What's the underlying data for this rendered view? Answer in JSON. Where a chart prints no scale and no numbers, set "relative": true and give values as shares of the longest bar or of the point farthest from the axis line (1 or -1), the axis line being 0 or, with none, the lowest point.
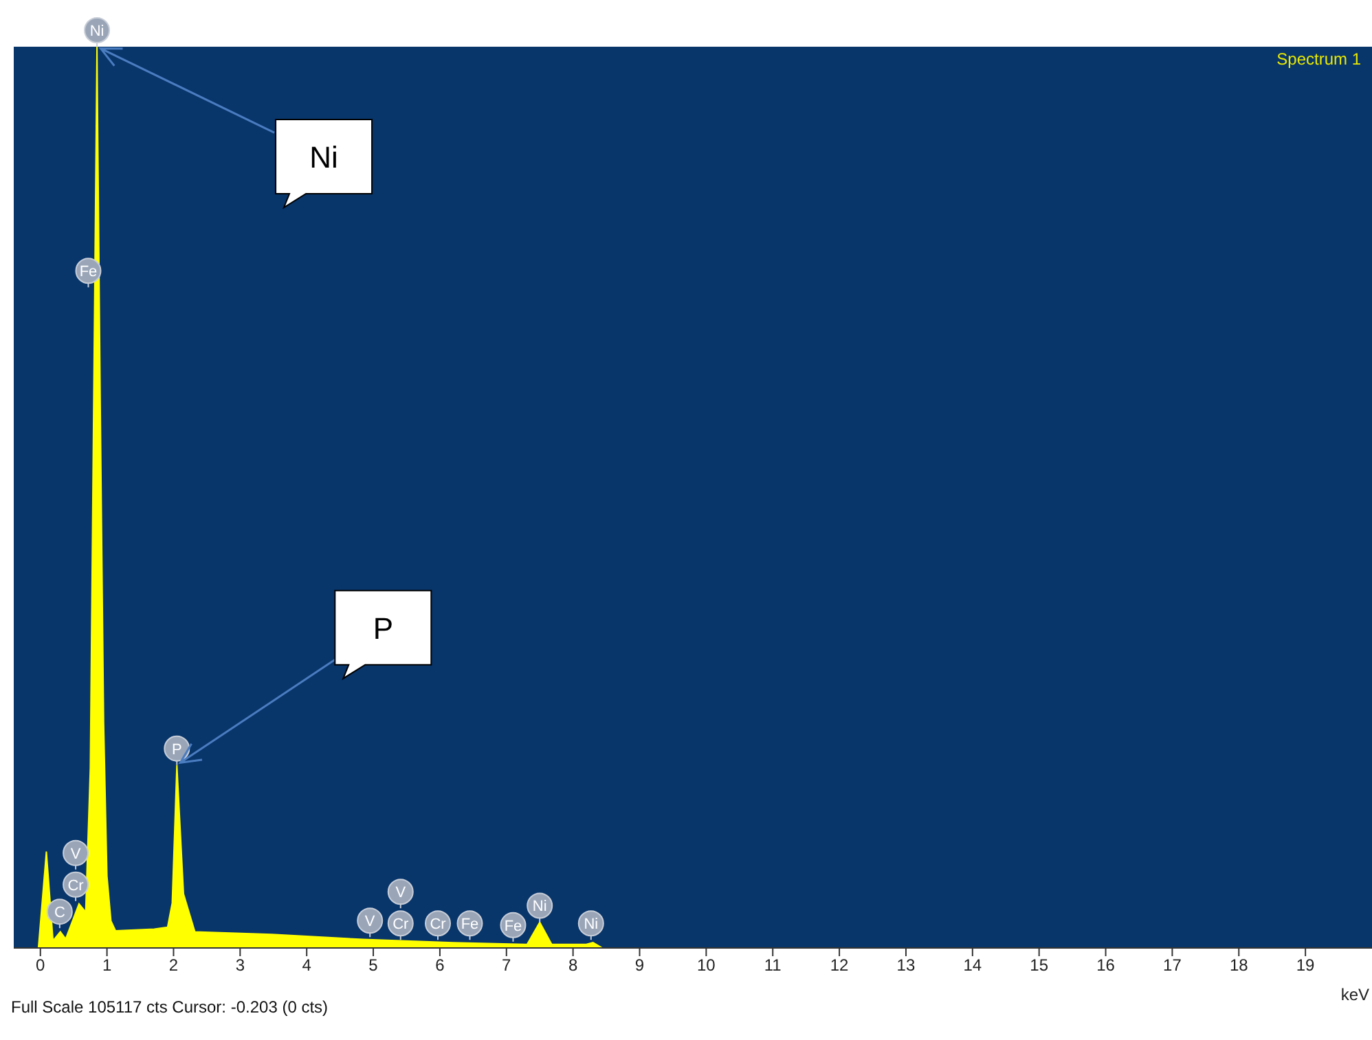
{
  "chart_data": {
    "type": "area",
    "title": "Spectrum 1",
    "xlabel": "keV",
    "relative": true,
    "color": "#ffff00",
    "x": [
      -0.03,
      0.09,
      0.19,
      0.3,
      0.38,
      0.58,
      0.68,
      0.75,
      0.8,
      0.85,
      0.9,
      0.95,
      1.0,
      1.06,
      1.13,
      1.71,
      1.91,
      1.98,
      2.05,
      2.15,
      2.32,
      3.48,
      4.85,
      6.2,
      7.31,
      7.5,
      7.68,
      8.2,
      8.3,
      8.44,
      20
    ],
    "values": [
      0,
      0.107,
      0.008,
      0.018,
      0.01,
      0.049,
      0.04,
      0.2,
      0.6,
      1,
      0.6,
      0.25,
      0.08,
      0.03,
      0.019,
      0.021,
      0.023,
      0.05,
      0.203,
      0.06,
      0.018,
      0.015,
      0.0095,
      0.006,
      0.004,
      0.0286,
      0.004,
      0.004,
      0.006,
      0,
      0
    ],
    "xlim": [
      -0.4,
      20
    ],
    "xticks": [
      0,
      1,
      2,
      3,
      4,
      5,
      6,
      7,
      8,
      9,
      10,
      11,
      12,
      13,
      14,
      15,
      16,
      17,
      18,
      19
    ],
    "annotations": [
      {
        "text": "Ni",
        "x": 0.85,
        "y": 1
      },
      {
        "text": "P",
        "x": 2.05,
        "y": 0.203
      },
      {
        "text": "Ni",
        "x": 0.85,
        "y": 1
      },
      {
        "text": "Fe",
        "x": 0.72,
        "y": 0.733
      },
      {
        "text": "P",
        "x": 2.05,
        "y": 0.203
      },
      {
        "text": "Cr",
        "x": 0.53,
        "y": 0.052
      },
      {
        "text": "V",
        "x": 0.53,
        "y": 0.052
      },
      {
        "text": "C",
        "x": 0.29,
        "y": 0.022
      },
      {
        "text": "V",
        "x": 4.95,
        "y": 0.012
      },
      {
        "text": "Cr",
        "x": 5.41,
        "y": 0.009
      },
      {
        "text": "V",
        "x": 5.41,
        "y": 0.009
      },
      {
        "text": "Cr",
        "x": 5.97,
        "y": 0.009
      },
      {
        "text": "Fe",
        "x": 6.45,
        "y": 0.009
      },
      {
        "text": "Fe",
        "x": 7.1,
        "y": 0.007
      },
      {
        "text": "Ni",
        "x": 7.5,
        "y": 0.0286
      },
      {
        "text": "Ni",
        "x": 8.27,
        "y": 0.009
      },
      "Full Scale 105117 cts Cursor: -0.203  (0 cts)"
    ]
  }
}
